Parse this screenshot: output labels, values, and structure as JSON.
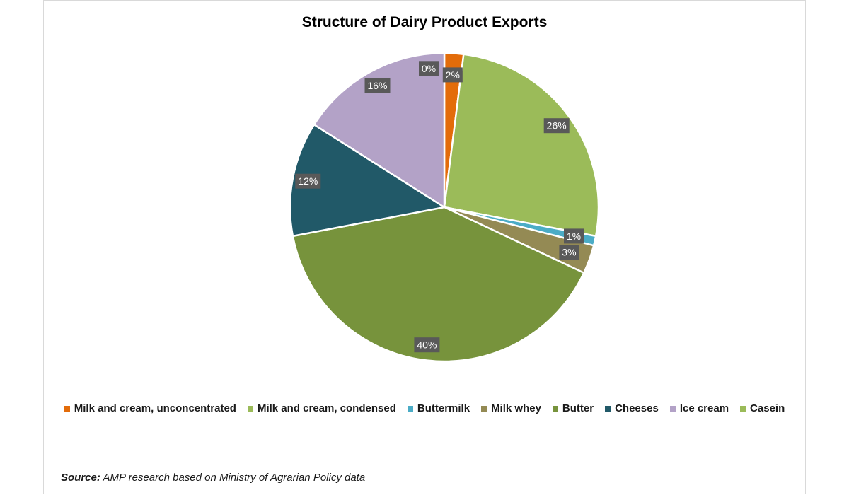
{
  "chart_data": {
    "type": "pie",
    "title": "Structure of Dairy Product Exports",
    "start_angle_deg": 0,
    "direction": "clockwise",
    "slices": [
      {
        "name": "Milk and cream, unconcentrated",
        "value": 2,
        "label": "2%",
        "color": "#e36c0a"
      },
      {
        "name": "Milk and cream, condensed",
        "value": 26,
        "label": "26%",
        "color": "#9bbb59"
      },
      {
        "name": "Buttermilk",
        "value": 1,
        "label": "1%",
        "color": "#4bacc6"
      },
      {
        "name": "Milk whey",
        "value": 3,
        "label": "3%",
        "color": "#948a54"
      },
      {
        "name": "Butter",
        "value": 40,
        "label": "40%",
        "color": "#77933c"
      },
      {
        "name": "Cheeses",
        "value": 12,
        "label": "12%",
        "color": "#215968"
      },
      {
        "name": "Ice cream",
        "value": 16,
        "label": "16%",
        "color": "#b3a2c7"
      },
      {
        "name": "Casein",
        "value": 0,
        "label": "0%",
        "color": "#9bbb59"
      }
    ],
    "legend_position": "bottom"
  },
  "source": {
    "label": "Source:",
    "text": " AMP research based on Ministry of Agrarian Policy data"
  }
}
